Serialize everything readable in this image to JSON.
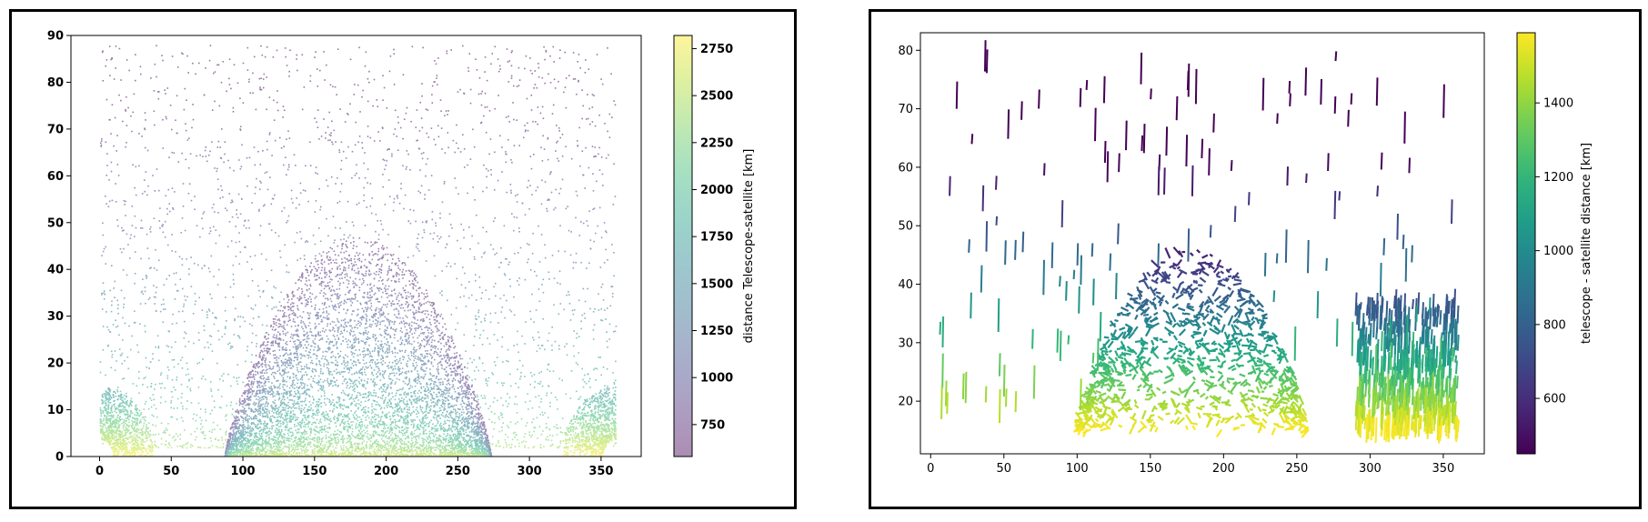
{
  "chart_data": [
    {
      "type": "scatter",
      "title": "",
      "xlabel": "",
      "ylabel": "",
      "xlim": [
        -20,
        378
      ],
      "ylim": [
        0,
        90
      ],
      "xticks": [
        0,
        50,
        100,
        150,
        200,
        250,
        300,
        350
      ],
      "yticks": [
        0,
        10,
        20,
        30,
        40,
        50,
        60,
        70,
        80,
        90
      ],
      "tick_font_weight": "bold",
      "grid": false,
      "colormap": "viridis",
      "marker_alpha": 0.55,
      "colorbar": {
        "label": "distance Telescope-satellite [km]",
        "range": [
          580,
          2820
        ],
        "ticks": [
          750,
          1000,
          1250,
          1500,
          1750,
          2000,
          2250,
          2500,
          2750
        ]
      },
      "dome": {
        "center": 180,
        "half_width": 93,
        "peak": 47
      },
      "side_arcs": {
        "left_center": 0,
        "right_center": 360,
        "radius": 37,
        "height": 15
      }
    },
    {
      "type": "scatter",
      "title": "",
      "xlabel": "",
      "ylabel": "",
      "xlim": [
        -7,
        378
      ],
      "ylim": [
        11,
        83
      ],
      "xticks": [
        0,
        50,
        100,
        150,
        200,
        250,
        300,
        350
      ],
      "yticks": [
        20,
        30,
        40,
        50,
        60,
        70,
        80
      ],
      "tick_font_weight": "normal",
      "grid": false,
      "colormap": "viridis",
      "marker_alpha": 1,
      "colorbar": {
        "label": "telescope - satellite distance [km]",
        "range": [
          450,
          1590
        ],
        "ticks": [
          600,
          800,
          1000,
          1200,
          1400
        ]
      },
      "dome": {
        "center": 180,
        "half_width": 78,
        "peak": 46
      },
      "floor": 15
    }
  ]
}
